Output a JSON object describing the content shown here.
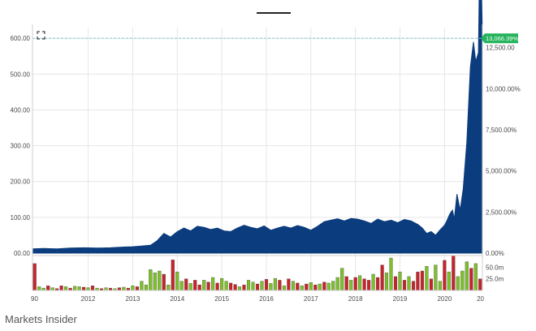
{
  "source_label": "Markets Insider",
  "colors": {
    "area_fill": "#0b3c7d",
    "volume_up": "#7dbf2a",
    "volume_down": "#c8242b",
    "last_price_badge": "#23b35a",
    "last_price_line": "#7fc7d6"
  },
  "icons": {
    "expand": "expand-corners-icon"
  },
  "chart_data": {
    "type": "area",
    "x_ticks": [
      "90",
      "2012",
      "2013",
      "2014",
      "2015",
      "2016",
      "2017",
      "2018",
      "2019",
      "2020",
      "20"
    ],
    "x_tick_years": [
      2010.75,
      2012,
      2013,
      2014,
      2015,
      2016,
      2017,
      2018,
      2019,
      2020,
      2020.85
    ],
    "xlim": [
      2010.75,
      2020.85
    ],
    "left_axis": {
      "ticks": [
        "00.00",
        "100.00",
        "200.00",
        "300.00",
        "400.00",
        "500.00",
        "600.00"
      ],
      "tick_values": [
        0,
        100,
        200,
        300,
        400,
        500,
        600
      ],
      "ylim": [
        0,
        630
      ]
    },
    "right_axis": {
      "ticks": [
        "0.00%",
        "2,500.00%",
        "5,000.00%",
        "7,500.00%",
        "10,000.00%",
        "12,500.00"
      ],
      "tick_values": [
        0,
        2500,
        5000,
        7500,
        10000,
        12500
      ]
    },
    "last_value_label": "13,066.39%",
    "last_value": 13066.39,
    "series": [
      {
        "x": [
          2010.75,
          2011.0,
          2011.3,
          2011.6,
          2011.9,
          2012.2,
          2012.5,
          2012.8,
          2013.0,
          2013.2,
          2013.4,
          2013.55,
          2013.7,
          2013.85,
          2014.0,
          2014.15,
          2014.3,
          2014.45,
          2014.6,
          2014.75,
          2014.9,
          2015.05,
          2015.2,
          2015.35,
          2015.5,
          2015.65,
          2015.8,
          2015.95,
          2016.1,
          2016.25,
          2016.4,
          2016.55,
          2016.7,
          2016.85,
          2017.0,
          2017.15,
          2017.3,
          2017.45,
          2017.6,
          2017.75,
          2017.9,
          2018.05,
          2018.2,
          2018.35,
          2018.5,
          2018.65,
          2018.8,
          2018.95,
          2019.1,
          2019.25,
          2019.4,
          2019.5,
          2019.6,
          2019.7,
          2019.8,
          2019.9,
          2020.0,
          2020.05,
          2020.12,
          2020.18,
          2020.22,
          2020.28,
          2020.35,
          2020.42,
          2020.5,
          2020.58,
          2020.65,
          2020.7,
          2020.76,
          2020.8,
          2020.85
        ],
        "values": [
          12,
          13,
          12,
          14,
          15,
          14,
          15,
          17,
          18,
          20,
          22,
          35,
          55,
          45,
          60,
          70,
          62,
          75,
          72,
          66,
          70,
          62,
          60,
          70,
          78,
          72,
          68,
          76,
          64,
          70,
          75,
          70,
          77,
          72,
          64,
          75,
          88,
          92,
          96,
          90,
          97,
          95,
          90,
          83,
          95,
          88,
          92,
          85,
          94,
          90,
          80,
          70,
          55,
          60,
          50,
          65,
          78,
          90,
          110,
          120,
          95,
          165,
          120,
          180,
          310,
          520,
          590,
          535,
          560,
          950,
          600
        ]
      }
    ],
    "volume": {
      "ticks": [
        "50.0m",
        "25.0m"
      ],
      "tick_values": [
        50,
        25
      ],
      "ylim": [
        0,
        70
      ],
      "x": [
        2010.8,
        2010.9,
        2011.0,
        2011.1,
        2011.2,
        2011.3,
        2011.4,
        2011.5,
        2011.6,
        2011.7,
        2011.8,
        2011.9,
        2012.0,
        2012.1,
        2012.2,
        2012.3,
        2012.4,
        2012.5,
        2012.6,
        2012.7,
        2012.8,
        2012.9,
        2013.0,
        2013.1,
        2013.2,
        2013.3,
        2013.4,
        2013.5,
        2013.6,
        2013.7,
        2013.8,
        2013.9,
        2014.0,
        2014.1,
        2014.2,
        2014.3,
        2014.4,
        2014.5,
        2014.6,
        2014.7,
        2014.8,
        2014.9,
        2015.0,
        2015.1,
        2015.2,
        2015.3,
        2015.4,
        2015.5,
        2015.6,
        2015.7,
        2015.8,
        2015.9,
        2016.0,
        2016.1,
        2016.2,
        2016.3,
        2016.4,
        2016.5,
        2016.6,
        2016.7,
        2016.8,
        2016.9,
        2017.0,
        2017.1,
        2017.2,
        2017.3,
        2017.4,
        2017.5,
        2017.6,
        2017.7,
        2017.8,
        2017.9,
        2018.0,
        2018.1,
        2018.2,
        2018.3,
        2018.4,
        2018.5,
        2018.6,
        2018.7,
        2018.8,
        2018.9,
        2019.0,
        2019.1,
        2019.2,
        2019.3,
        2019.4,
        2019.5,
        2019.6,
        2019.7,
        2019.8,
        2019.9,
        2020.0,
        2020.1,
        2020.2,
        2020.3,
        2020.4,
        2020.5,
        2020.6,
        2020.7,
        2020.8
      ],
      "values": [
        58,
        8,
        5,
        10,
        6,
        4,
        10,
        8,
        5,
        9,
        8,
        7,
        6,
        10,
        5,
        4,
        6,
        5,
        4,
        6,
        7,
        5,
        10,
        8,
        20,
        12,
        45,
        38,
        42,
        35,
        12,
        66,
        40,
        20,
        25,
        15,
        22,
        12,
        22,
        18,
        28,
        16,
        26,
        20,
        16,
        13,
        8,
        12,
        22,
        18,
        14,
        20,
        24,
        15,
        26,
        22,
        10,
        25,
        20,
        16,
        10,
        14,
        17,
        12,
        14,
        18,
        16,
        20,
        28,
        48,
        30,
        22,
        28,
        32,
        25,
        22,
        35,
        28,
        55,
        38,
        70,
        30,
        40,
        22,
        30,
        20,
        40,
        42,
        52,
        25,
        55,
        20,
        65,
        40,
        75,
        30,
        42,
        62,
        48,
        58,
        25
      ],
      "up": [
        0,
        1,
        1,
        0,
        1,
        0,
        0,
        1,
        0,
        1,
        1,
        0,
        1,
        0,
        1,
        0,
        1,
        0,
        1,
        0,
        1,
        0,
        1,
        0,
        1,
        1,
        1,
        1,
        1,
        0,
        1,
        0,
        1,
        1,
        0,
        1,
        0,
        0,
        1,
        0,
        1,
        0,
        1,
        1,
        0,
        0,
        1,
        0,
        1,
        1,
        0,
        1,
        0,
        1,
        1,
        0,
        1,
        0,
        1,
        0,
        1,
        0,
        1,
        0,
        1,
        0,
        1,
        1,
        1,
        1,
        0,
        1,
        0,
        1,
        0,
        0,
        1,
        0,
        0,
        1,
        1,
        0,
        1,
        0,
        1,
        0,
        0,
        0,
        1,
        0,
        1,
        1,
        0,
        1,
        0,
        1,
        1,
        1,
        0,
        1,
        0
      ]
    },
    "grid": true,
    "legend": "none"
  }
}
